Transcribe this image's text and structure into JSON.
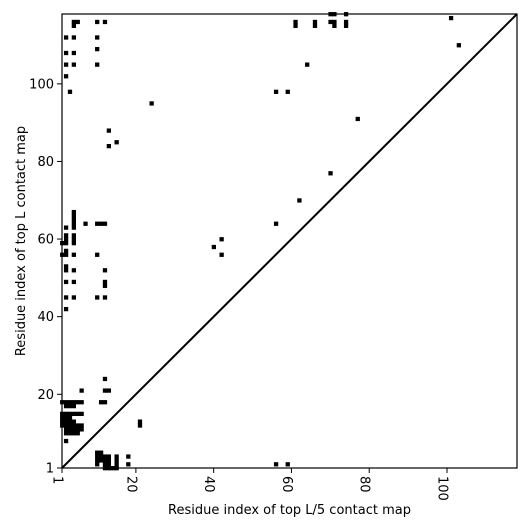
{
  "chart_data": {
    "type": "scatter",
    "title": "",
    "xlabel": "Residue index of top L/5 contact map",
    "ylabel": "Residue index of top L contact map",
    "xlim": [
      1,
      118
    ],
    "ylim": [
      1,
      118
    ],
    "x_ticks": [
      {
        "value": 1,
        "label": "1"
      },
      {
        "value": 20,
        "label": "20"
      },
      {
        "value": 40,
        "label": "40"
      },
      {
        "value": 60,
        "label": "60"
      },
      {
        "value": 80,
        "label": "80"
      },
      {
        "value": 100,
        "label": "100"
      }
    ],
    "y_ticks": [
      {
        "value": 1,
        "label": "1"
      },
      {
        "value": 20,
        "label": "20"
      },
      {
        "value": 40,
        "label": "40"
      },
      {
        "value": 60,
        "label": "60"
      },
      {
        "value": 80,
        "label": "80"
      },
      {
        "value": 100,
        "label": "100"
      }
    ],
    "diagonal": true,
    "grid": false,
    "marker_color": "#000000",
    "series": [
      {
        "points": [
          [
            2,
            112
          ],
          [
            2,
            108
          ],
          [
            2,
            105
          ],
          [
            2,
            102
          ],
          [
            3,
            98
          ],
          [
            4,
            116
          ],
          [
            5,
            116
          ],
          [
            4,
            115
          ],
          [
            4,
            112
          ],
          [
            4,
            108
          ],
          [
            4,
            105
          ],
          [
            10,
            116
          ],
          [
            10,
            112
          ],
          [
            10,
            109
          ],
          [
            10,
            105
          ],
          [
            12,
            116
          ],
          [
            13,
            88
          ],
          [
            13,
            84
          ],
          [
            15,
            85
          ],
          [
            24,
            95
          ],
          [
            61,
            116
          ],
          [
            61,
            115
          ],
          [
            66,
            116
          ],
          [
            66,
            115
          ],
          [
            64,
            105
          ],
          [
            70,
            118
          ],
          [
            71,
            118
          ],
          [
            74,
            118
          ],
          [
            70,
            116
          ],
          [
            71,
            116
          ],
          [
            74,
            116
          ],
          [
            71,
            115
          ],
          [
            74,
            115
          ],
          [
            101,
            117
          ],
          [
            103,
            110
          ],
          [
            77,
            91
          ],
          [
            56,
            98
          ],
          [
            59,
            98
          ],
          [
            62,
            70
          ],
          [
            70,
            77
          ],
          [
            56,
            64
          ],
          [
            40,
            58
          ],
          [
            42,
            60
          ],
          [
            42,
            56
          ],
          [
            2,
            63
          ],
          [
            2,
            61
          ],
          [
            2,
            60
          ],
          [
            1,
            59
          ],
          [
            2,
            59
          ],
          [
            2,
            57
          ],
          [
            1,
            56
          ],
          [
            2,
            56
          ],
          [
            4,
            67
          ],
          [
            4,
            66
          ],
          [
            4,
            65
          ],
          [
            4,
            64
          ],
          [
            4,
            63
          ],
          [
            4,
            61
          ],
          [
            4,
            60
          ],
          [
            4,
            59
          ],
          [
            4,
            56
          ],
          [
            7,
            64
          ],
          [
            10,
            64
          ],
          [
            11,
            64
          ],
          [
            12,
            64
          ],
          [
            10,
            56
          ],
          [
            2,
            53
          ],
          [
            2,
            52
          ],
          [
            4,
            52
          ],
          [
            12,
            52
          ],
          [
            2,
            49
          ],
          [
            4,
            49
          ],
          [
            12,
            49
          ],
          [
            12,
            48
          ],
          [
            2,
            45
          ],
          [
            4,
            45
          ],
          [
            10,
            45
          ],
          [
            12,
            45
          ],
          [
            2,
            42
          ],
          [
            6,
            21
          ],
          [
            12,
            24
          ],
          [
            12,
            21
          ],
          [
            13,
            21
          ],
          [
            11,
            18
          ],
          [
            12,
            18
          ],
          [
            1,
            18
          ],
          [
            2,
            18
          ],
          [
            3,
            18
          ],
          [
            4,
            18
          ],
          [
            5,
            18
          ],
          [
            6,
            18
          ],
          [
            2,
            17
          ],
          [
            3,
            17
          ],
          [
            4,
            17
          ],
          [
            1,
            15
          ],
          [
            2,
            15
          ],
          [
            3,
            15
          ],
          [
            4,
            15
          ],
          [
            5,
            15
          ],
          [
            6,
            15
          ],
          [
            1,
            14
          ],
          [
            2,
            14
          ],
          [
            3,
            14
          ],
          [
            1,
            13
          ],
          [
            2,
            13
          ],
          [
            3,
            13
          ],
          [
            4,
            13
          ],
          [
            1,
            12
          ],
          [
            2,
            12
          ],
          [
            3,
            12
          ],
          [
            4,
            12
          ],
          [
            5,
            12
          ],
          [
            6,
            12
          ],
          [
            2,
            11
          ],
          [
            3,
            11
          ],
          [
            4,
            11
          ],
          [
            5,
            11
          ],
          [
            6,
            11
          ],
          [
            2,
            10
          ],
          [
            3,
            10
          ],
          [
            4,
            10
          ],
          [
            5,
            10
          ],
          [
            2,
            8
          ],
          [
            21,
            13
          ],
          [
            21,
            12
          ],
          [
            10,
            5
          ],
          [
            11,
            5
          ],
          [
            10,
            4
          ],
          [
            11,
            4
          ],
          [
            12,
            4
          ],
          [
            13,
            4
          ],
          [
            15,
            4
          ],
          [
            18,
            4
          ],
          [
            10,
            3
          ],
          [
            11,
            3
          ],
          [
            12,
            3
          ],
          [
            13,
            3
          ],
          [
            15,
            3
          ],
          [
            10,
            2
          ],
          [
            12,
            2
          ],
          [
            13,
            2
          ],
          [
            15,
            2
          ],
          [
            18,
            2
          ],
          [
            12,
            1
          ],
          [
            13,
            1
          ],
          [
            14,
            1
          ],
          [
            15,
            1
          ],
          [
            56,
            2
          ],
          [
            59,
            2
          ]
        ]
      }
    ]
  }
}
